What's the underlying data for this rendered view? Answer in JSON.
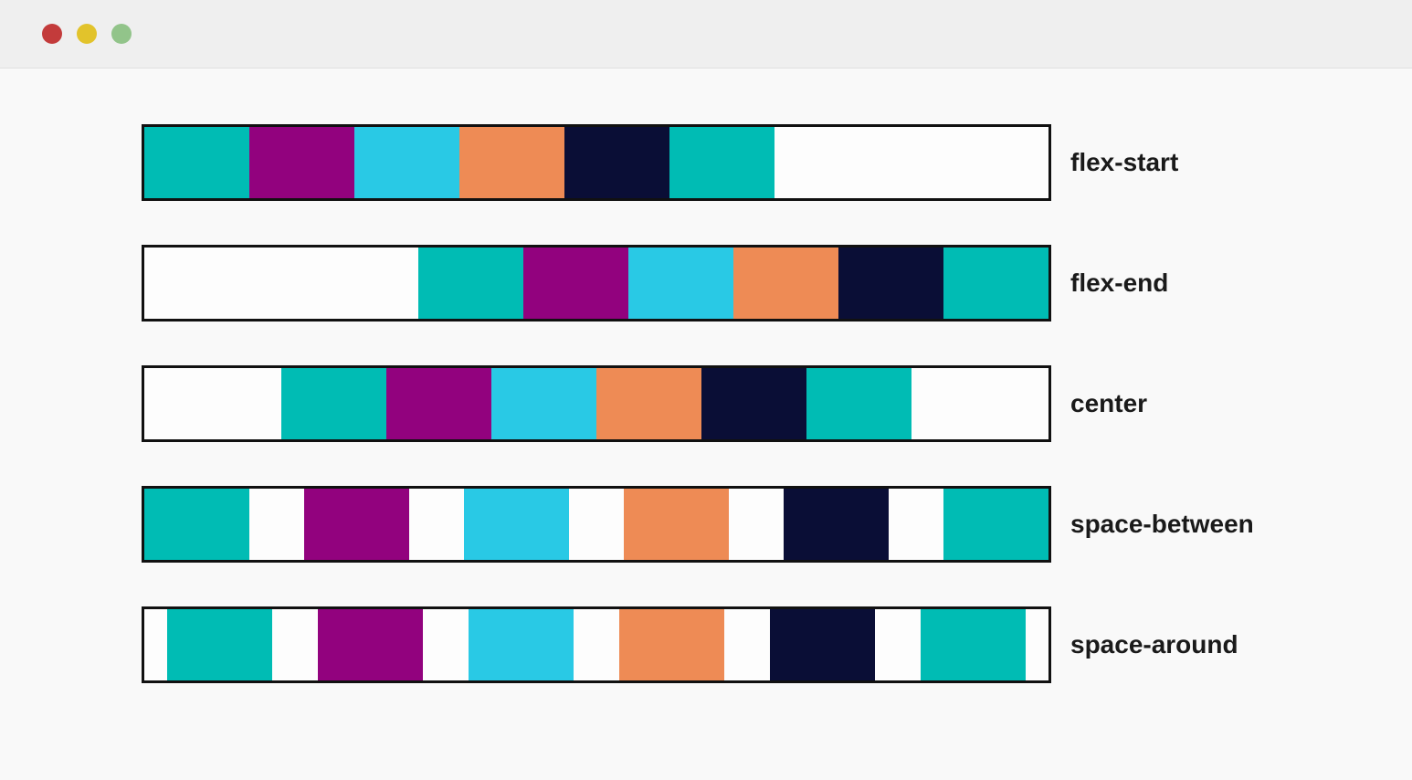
{
  "window": {
    "titlebar": {
      "background": "#EFEFEF",
      "dots": [
        {
          "name": "close",
          "color": "#C33B3B"
        },
        {
          "name": "minimize",
          "color": "#E2C32B"
        },
        {
          "name": "maximize",
          "color": "#92C48A"
        }
      ]
    }
  },
  "demo": {
    "rows": [
      {
        "label": "flex-start",
        "justify": "flex-start"
      },
      {
        "label": "flex-end",
        "justify": "flex-end"
      },
      {
        "label": "center",
        "justify": "center"
      },
      {
        "label": "space-between",
        "justify": "space-between"
      },
      {
        "label": "space-around",
        "justify": "space-around"
      }
    ],
    "block_colors": [
      {
        "name": "teal",
        "color": "#00BCB4"
      },
      {
        "name": "purple",
        "color": "#92027E"
      },
      {
        "name": "cyan",
        "color": "#29C9E5"
      },
      {
        "name": "orange",
        "color": "#EE8B55"
      },
      {
        "name": "navy",
        "color": "#0A0E36"
      },
      {
        "name": "teal-2",
        "color": "#00BCB4"
      }
    ],
    "container": {
      "border_color": "#111111",
      "background": "#FDFDFD"
    }
  },
  "page": {
    "background": "#F9F9F9"
  }
}
